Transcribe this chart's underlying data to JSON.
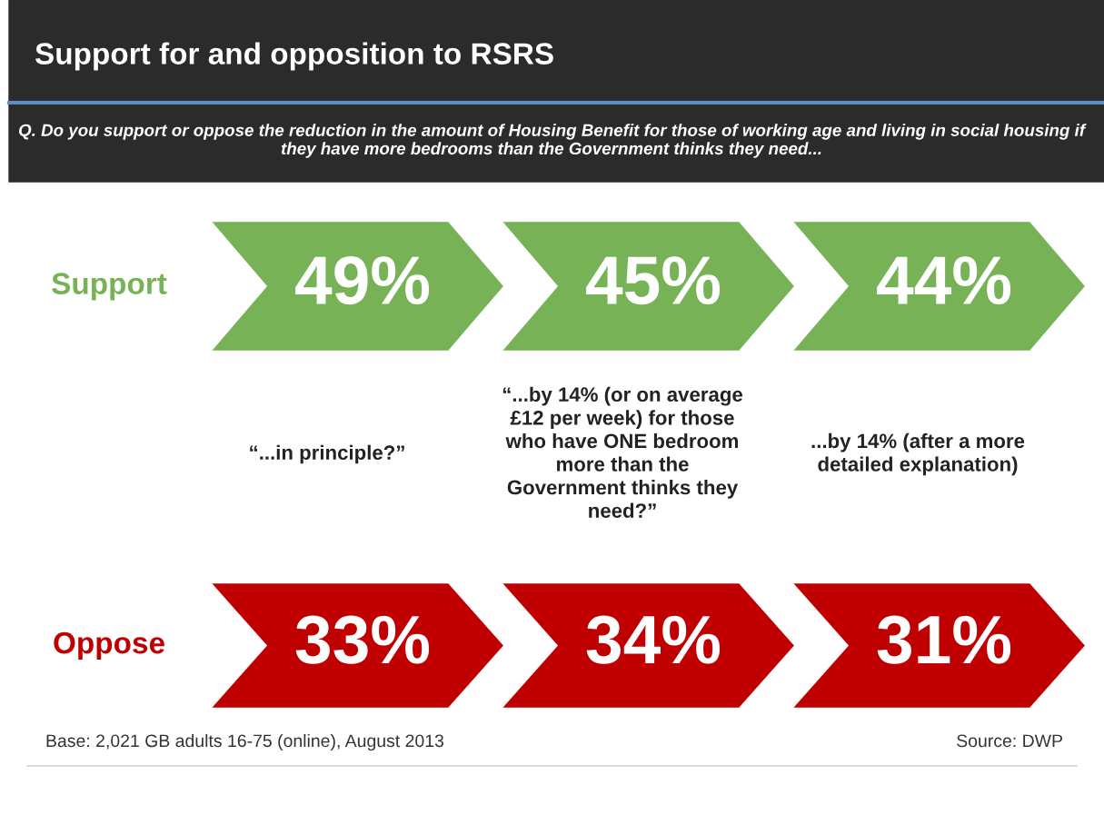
{
  "chart_data": {
    "type": "other",
    "title": "Support for and opposition to RSRS",
    "subtitle": "Q. Do you support or oppose the reduction in the amount of Housing Benefit for those of working age and living in social housing if they have more bedrooms than the Government thinks they need...",
    "categories": [
      "“...in principle?”",
      "“...by 14% (or on average £12 per week) for those who have ONE bedroom more than the Government thinks they need?”",
      "...by 14% (after a more detailed explanation)"
    ],
    "series": [
      {
        "name": "Support",
        "color": "#77b356",
        "values": [
          49,
          45,
          44
        ],
        "value_labels": [
          "49%",
          "45%",
          "44%"
        ]
      },
      {
        "name": "Oppose",
        "color": "#c00000",
        "values": [
          33,
          34,
          31
        ],
        "value_labels": [
          "33%",
          "34%",
          "31%"
        ]
      }
    ],
    "annotations": [
      "Base: 2,021 GB adults 16-75 (online), August 2013",
      "Source: DWP"
    ]
  }
}
